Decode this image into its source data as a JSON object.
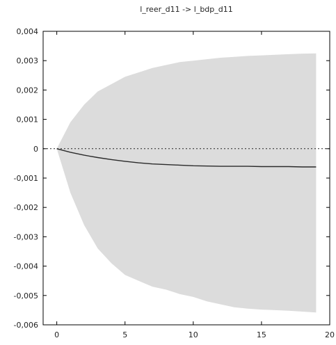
{
  "chart_data": {
    "type": "area",
    "title": "l_reer_d11 -> l_bdp_d11",
    "xlabel": "",
    "ylabel": "",
    "xlim": [
      -1,
      20
    ],
    "ylim": [
      -0.006,
      0.004
    ],
    "x_ticks": [
      0,
      5,
      10,
      15,
      20
    ],
    "x_tick_labels": [
      "0",
      "5",
      "10",
      "15",
      "20"
    ],
    "y_ticks": [
      0.004,
      0.003,
      0.002,
      0.001,
      0,
      -0.001,
      -0.002,
      -0.003,
      -0.004,
      -0.005,
      -0.006
    ],
    "y_tick_labels": [
      "0,004",
      "0,003",
      "0,002",
      "0,001",
      "0",
      "-0,001",
      "-0,002",
      "-0,003",
      "-0,004",
      "-0,005",
      "-0,006"
    ],
    "grid": false,
    "legend": "none",
    "zero_line": true,
    "colors": {
      "band": "#dcdcdc",
      "line": "#2a2a2a",
      "zero": "#222222",
      "frame": "#000000"
    },
    "x": [
      0,
      1,
      2,
      3,
      4,
      5,
      6,
      7,
      8,
      9,
      10,
      11,
      12,
      13,
      14,
      15,
      16,
      17,
      18,
      19
    ],
    "series": [
      {
        "role": "response",
        "values": [
          0,
          -0.00012,
          -0.00022,
          -0.0003,
          -0.00037,
          -0.00043,
          -0.00048,
          -0.00052,
          -0.00054,
          -0.00056,
          -0.00058,
          -0.00059,
          -0.0006,
          -0.0006,
          -0.0006,
          -0.00061,
          -0.00061,
          -0.00061,
          -0.00062,
          -0.00062
        ]
      },
      {
        "role": "band-upper",
        "values": [
          0,
          0.0009,
          0.0015,
          0.00195,
          0.0022,
          0.00245,
          0.0026,
          0.00275,
          0.00285,
          0.00295,
          0.003,
          0.00305,
          0.0031,
          0.00313,
          0.00316,
          0.00318,
          0.0032,
          0.00322,
          0.00324,
          0.00325
        ]
      },
      {
        "role": "band-lower",
        "values": [
          0,
          -0.0015,
          -0.0026,
          -0.0034,
          -0.0039,
          -0.0043,
          -0.0045,
          -0.0047,
          -0.0048,
          -0.00495,
          -0.00505,
          -0.0052,
          -0.0053,
          -0.0054,
          -0.00545,
          -0.00548,
          -0.0055,
          -0.00552,
          -0.00555,
          -0.00558
        ]
      }
    ]
  }
}
